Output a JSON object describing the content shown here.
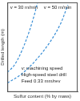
{
  "chart_data": {
    "type": "line",
    "x_label": "Sulfur content (% by mass)",
    "y_label": "Drilled length (m)",
    "xlim": [
      0,
      1
    ],
    "ylim": [
      0,
      1
    ],
    "grid": false,
    "tick_labels": false,
    "annotations": [
      "v: machining speed",
      "High-speed steel drill",
      "Feed 0.33 mm/rev"
    ],
    "series": [
      {
        "name": "v = 30 m/min",
        "color": "#3a8fd6",
        "marker": "none",
        "line_style": "dashed",
        "x": [
          0,
          0.1,
          0.2,
          0.3,
          0.38,
          0.43
        ],
        "values": [
          0.22,
          0.3,
          0.45,
          0.65,
          0.85,
          1.0
        ]
      },
      {
        "name": "v = 50 m/min",
        "color": "#3a8fd6",
        "marker": "none",
        "line_style": "dashed",
        "x": [
          0,
          0.2,
          0.4,
          0.6,
          0.75,
          0.86
        ],
        "values": [
          0.1,
          0.2,
          0.35,
          0.55,
          0.75,
          0.97
        ]
      }
    ]
  }
}
